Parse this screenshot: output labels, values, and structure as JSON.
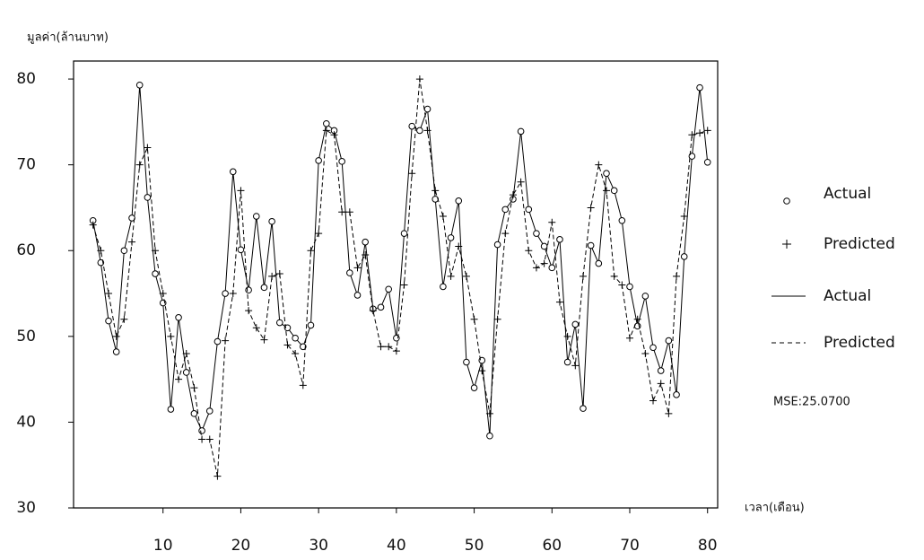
{
  "chart_data": {
    "type": "line",
    "y_label": "มูลค่า(ล้านบาท)",
    "x_label": "เวลา(เดือน)",
    "annotation": "MSE:25.0700",
    "x": [
      1,
      2,
      3,
      4,
      5,
      6,
      7,
      8,
      9,
      10,
      11,
      12,
      13,
      14,
      15,
      16,
      17,
      18,
      19,
      20,
      21,
      22,
      23,
      24,
      25,
      26,
      27,
      28,
      29,
      30,
      31,
      32,
      33,
      34,
      35,
      36,
      37,
      38,
      39,
      40,
      41,
      42,
      43,
      44,
      45,
      46,
      47,
      48,
      49,
      50,
      51,
      52,
      53,
      54,
      55,
      56,
      57,
      58,
      59,
      60,
      61,
      62,
      63,
      64,
      65,
      66,
      67,
      68,
      69,
      70,
      71,
      72,
      73,
      74,
      75,
      76,
      77,
      78,
      79,
      80
    ],
    "series": [
      {
        "name": "Actual",
        "color": "#000000",
        "marker": "circle",
        "dashed": false,
        "values": [
          63.5,
          58.6,
          51.8,
          48.2,
          60,
          63.8,
          79.3,
          66.2,
          57.3,
          53.9,
          41.5,
          52.2,
          45.8,
          41,
          39,
          41.3,
          49.4,
          55,
          69.2,
          60.1,
          55.4,
          64,
          55.7,
          63.4,
          51.6,
          51,
          49.8,
          48.8,
          51.3,
          70.5,
          74.8,
          74,
          70.4,
          57.4,
          54.8,
          61,
          53.2,
          53.4,
          55.5,
          49.8,
          62,
          74.5,
          74,
          76.5,
          66,
          55.8,
          61.5,
          65.8,
          47,
          44,
          47.2,
          38.4,
          60.7,
          64.8,
          66,
          73.9,
          64.8,
          62,
          60.5,
          58,
          61.3,
          47,
          51.4,
          41.6,
          60.6,
          58.5,
          69,
          67,
          63.5,
          55.8,
          51.2,
          54.7,
          48.7,
          46,
          49.5,
          43.2,
          59.3,
          71,
          79,
          70.3
        ]
      },
      {
        "name": "Predicted",
        "color": "#000000",
        "marker": "plus",
        "dashed": true,
        "values": [
          63,
          60,
          55,
          50,
          52,
          61,
          70,
          72,
          60,
          55,
          50,
          45,
          48,
          44,
          38,
          38,
          33.7,
          49.5,
          55,
          67,
          53,
          51,
          49.6,
          57,
          57.3,
          49,
          48,
          44.3,
          60,
          62,
          74,
          73.5,
          64.5,
          64.5,
          58,
          59.5,
          53,
          48.8,
          48.8,
          48.3,
          56,
          69,
          80,
          74,
          67,
          64,
          57,
          60.5,
          57,
          52,
          46,
          41,
          52,
          62,
          66.5,
          68,
          60,
          58,
          58.5,
          63.3,
          54,
          50,
          46.6,
          57,
          65,
          70,
          67,
          57,
          56,
          49.8,
          52,
          48,
          42.5,
          44.5,
          41,
          57,
          64,
          73.5,
          73.7,
          74
        ]
      }
    ],
    "xlim": [
      -1.5,
      81.3
    ],
    "ylim": [
      30,
      82.1
    ],
    "xticks": [
      10,
      20,
      30,
      40,
      50,
      60,
      70,
      80
    ],
    "yticks": [
      30,
      40,
      50,
      60,
      70,
      80
    ]
  }
}
